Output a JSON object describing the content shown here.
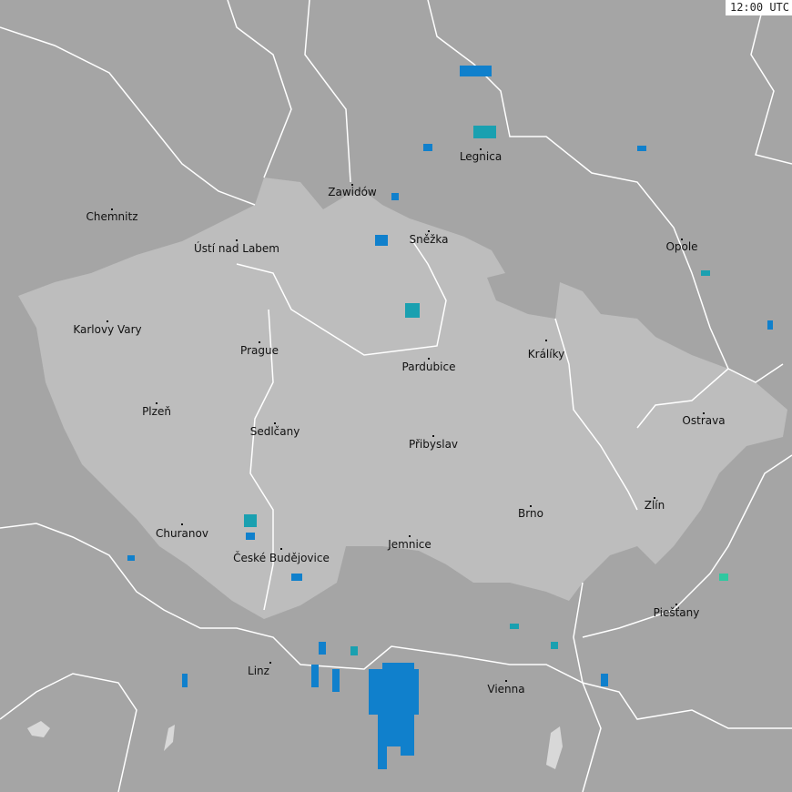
{
  "timestamp": "12:00 UTC",
  "colors": {
    "background": "#a5a5a5",
    "highlighted_region": "#bdbdbd",
    "borders": "#ffffff",
    "radar_low": "#1080cc",
    "radar_mid": "#1aa0b0",
    "radar_high": "#30c8a0"
  },
  "cities": [
    {
      "name": "Chemnitz"
    },
    {
      "name": "Zawidów"
    },
    {
      "name": "Legnica"
    },
    {
      "name": "Ústí nad Labem"
    },
    {
      "name": "Sněžka"
    },
    {
      "name": "Opole"
    },
    {
      "name": "Karlovy Vary"
    },
    {
      "name": "Prague"
    },
    {
      "name": "Pardubice"
    },
    {
      "name": "Králíky"
    },
    {
      "name": "Plzeň"
    },
    {
      "name": "Ostrava"
    },
    {
      "name": "Sedlčany"
    },
    {
      "name": "Přibyslav"
    },
    {
      "name": "Zlín"
    },
    {
      "name": "Brno"
    },
    {
      "name": "Churanov"
    },
    {
      "name": "České Budějovice"
    },
    {
      "name": "Jemnice"
    },
    {
      "name": "Piešťany"
    },
    {
      "name": "Linz"
    },
    {
      "name": "Vienna"
    }
  ]
}
